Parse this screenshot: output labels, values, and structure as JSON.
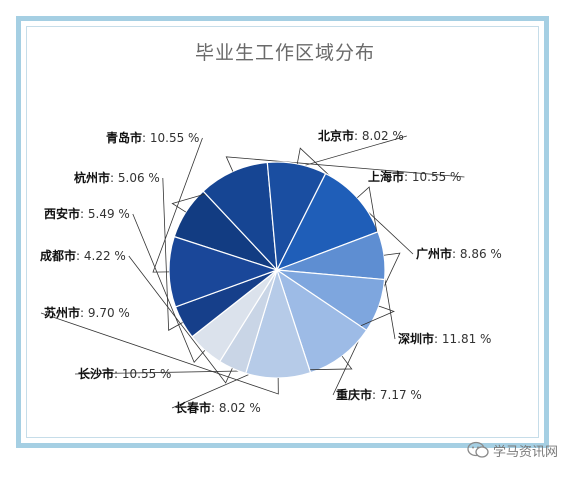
{
  "chart_data": {
    "type": "pie",
    "title": "毕业生工作区域分布",
    "slices": [
      {
        "name": "北京市",
        "label": "8.02 %",
        "value": 8.02,
        "color": "#123c82"
      },
      {
        "name": "上海市",
        "label": "10.55 %",
        "value": 10.55,
        "color": "#164593"
      },
      {
        "name": "广州市",
        "label": "8.86 %",
        "value": 8.86,
        "color": "#1a4ea1"
      },
      {
        "name": "深圳市",
        "label": "11.81 %",
        "value": 11.81,
        "color": "#1f5eb8"
      },
      {
        "name": "重庆市",
        "label": "7.17 %",
        "value": 7.17,
        "color": "#5e8ed2"
      },
      {
        "name": "长春市",
        "label": "8.02 %",
        "value": 8.02,
        "color": "#7ea6de"
      },
      {
        "name": "长沙市",
        "label": "10.55 %",
        "value": 10.55,
        "color": "#9dbbe6"
      },
      {
        "name": "苏州市",
        "label": "9.70 %",
        "value": 9.7,
        "color": "#b6cbe8"
      },
      {
        "name": "成都市",
        "label": "4.22 %",
        "value": 4.22,
        "color": "#c9d5e6"
      },
      {
        "name": "西安市",
        "label": "5.49 %",
        "value": 5.49,
        "color": "#dbe2ec"
      },
      {
        "name": "杭州市",
        "label": "5.06 %",
        "value": 5.06,
        "color": "#163f8a"
      },
      {
        "name": "青岛市",
        "label": "10.55 %",
        "value": 10.55,
        "color": "#1a4799"
      }
    ]
  },
  "watermark": {
    "text": "学马资讯网",
    "icon": "wechat-icon"
  }
}
